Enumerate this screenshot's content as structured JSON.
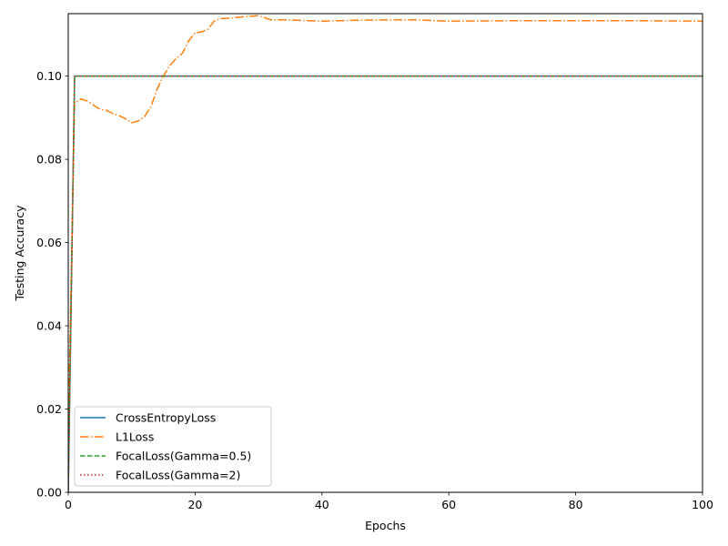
{
  "chart_data": {
    "type": "line",
    "title": "",
    "xlabel": "Epochs",
    "ylabel": "Testing Accuracy",
    "xlim": [
      0,
      100
    ],
    "ylim": [
      0,
      0.115
    ],
    "xticks": [
      0,
      20,
      40,
      60,
      80,
      100
    ],
    "xtick_labels": [
      "0",
      "20",
      "40",
      "60",
      "80",
      "100"
    ],
    "yticks": [
      0.0,
      0.02,
      0.04,
      0.06,
      0.08,
      0.1
    ],
    "ytick_labels": [
      "0.00",
      "0.02",
      "0.04",
      "0.06",
      "0.08",
      "0.10"
    ],
    "grid": false,
    "legend_position": "lower-left",
    "series": [
      {
        "name": "CrossEntropyLoss",
        "color": "#1f77b4",
        "style": "solid",
        "x": [
          0,
          1,
          100
        ],
        "y": [
          0.0,
          0.1,
          0.1
        ]
      },
      {
        "name": "L1Loss",
        "color": "#ff7f0e",
        "style": "dashdot",
        "x": [
          0,
          1,
          2,
          3,
          4,
          5,
          6,
          7,
          8,
          9,
          10,
          11,
          12,
          13,
          14,
          15,
          16,
          17,
          18,
          19,
          20,
          21,
          22,
          23,
          24,
          26,
          28,
          30,
          32,
          35,
          38,
          40,
          45,
          50,
          55,
          60,
          70,
          80,
          90,
          100
        ],
        "y": [
          0.015,
          0.0935,
          0.0945,
          0.094,
          0.093,
          0.092,
          0.0918,
          0.091,
          0.0905,
          0.0898,
          0.0888,
          0.0892,
          0.0902,
          0.0925,
          0.0968,
          0.1,
          0.1025,
          0.1042,
          0.1055,
          0.1085,
          0.1104,
          0.1106,
          0.1112,
          0.1132,
          0.1138,
          0.114,
          0.1143,
          0.1145,
          0.1135,
          0.1135,
          0.1133,
          0.1132,
          0.1134,
          0.1135,
          0.1135,
          0.1132,
          0.1133,
          0.1133,
          0.1133,
          0.1132
        ]
      },
      {
        "name": "FocalLoss(Gamma=0.5)",
        "color": "#2ca02c",
        "style": "dashed",
        "x": [
          0,
          1,
          100
        ],
        "y": [
          0.0,
          0.1,
          0.1
        ]
      },
      {
        "name": "FocalLoss(Gamma=2)",
        "color": "#d62728",
        "style": "dotted",
        "x": [
          0,
          1,
          100
        ],
        "y": [
          0.0,
          0.1,
          0.1
        ]
      }
    ]
  }
}
